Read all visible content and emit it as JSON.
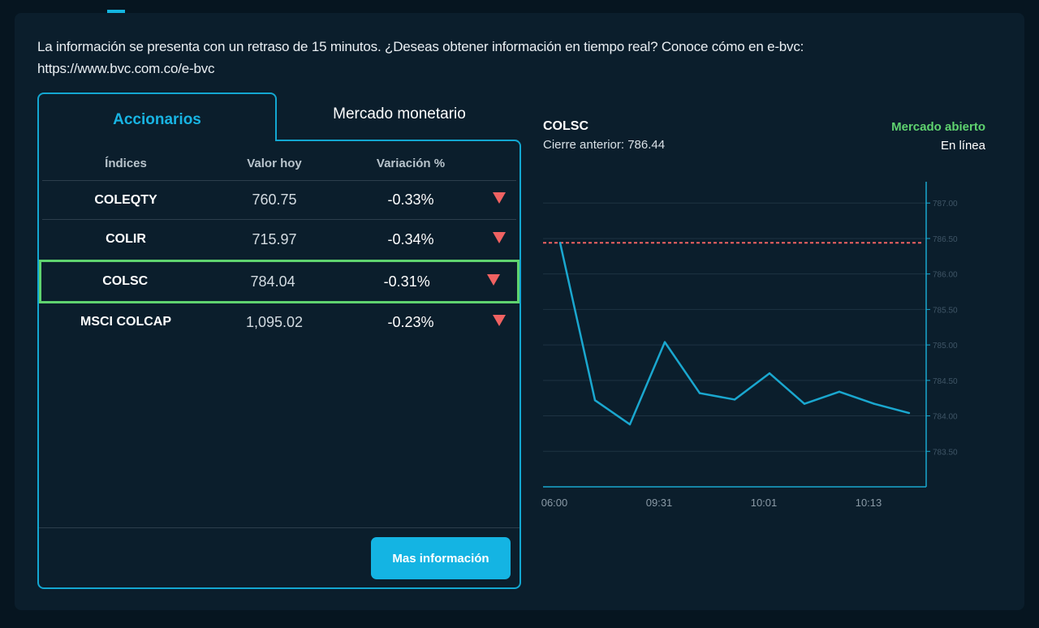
{
  "notice": "La información se presenta con un retraso de 15 minutos. ¿Deseas obtener información en tiempo real? Conoce cómo en e-bvc: https://www.bvc.com.co/e-bvc",
  "tabs": [
    {
      "label": "Accionarios",
      "active": true
    },
    {
      "label": "Mercado monetario",
      "active": false
    }
  ],
  "table": {
    "headers": [
      "Índices",
      "Valor hoy",
      "Variación %"
    ],
    "rows": [
      {
        "name": "COLEQTY",
        "value": "760.75",
        "change": "-0.33%",
        "trend_icon": "down-triangle-icon"
      },
      {
        "name": "COLIR",
        "value": "715.97",
        "change": "-0.34%",
        "trend_icon": "down-triangle-icon"
      },
      {
        "name": "COLSC",
        "value": "784.04",
        "change": "-0.31%",
        "trend_icon": "down-triangle-icon",
        "selected": true
      },
      {
        "name": "MSCI COLCAP",
        "value": "1,095.02",
        "change": "-0.23%",
        "trend_icon": "down-triangle-icon"
      }
    ]
  },
  "more_button": "Mas información",
  "chart_header": {
    "symbol": "COLSC",
    "previous_close": "Cierre anterior: 786.44",
    "market_status": "Mercado abierto",
    "live": "En línea"
  },
  "colors": {
    "accent": "#14b4e3",
    "positive": "#5fd36f",
    "negative": "#f06262",
    "line": "#1aa7cf"
  },
  "chart_data": {
    "type": "line",
    "x": [
      "06:00",
      "",
      "",
      "09:31",
      "",
      "",
      "10:01",
      "",
      "",
      "10:13",
      ""
    ],
    "xticks": [
      "06:00",
      "09:31",
      "10:01",
      "10:13"
    ],
    "series": [
      {
        "values": [
          786.44,
          784.22,
          783.88,
          785.04,
          784.32,
          784.23,
          784.6,
          784.17,
          784.34,
          784.17,
          784.04
        ]
      }
    ],
    "reference_line": 786.44,
    "ylim": [
      783.0,
      787.3
    ],
    "yticks": [
      "787.00",
      "786.50",
      "786.00",
      "785.50",
      "785.00",
      "784.50",
      "784.00",
      "783.50"
    ],
    "grid": true
  }
}
